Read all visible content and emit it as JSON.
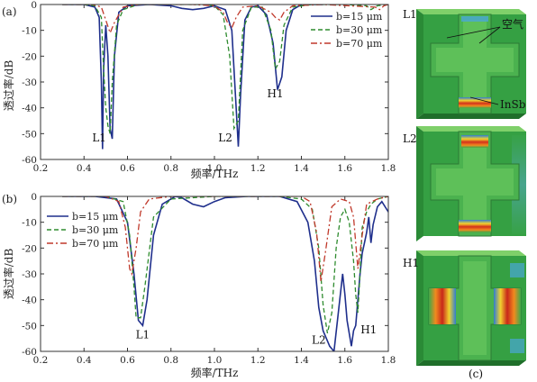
{
  "chart_data": [
    {
      "panel": "(a)",
      "type": "line",
      "xlabel": "频率/THz",
      "ylabel": "透过率/dB",
      "xlim": [
        0.2,
        1.8
      ],
      "ylim": [
        -60,
        0
      ],
      "xticks": [
        "0.2",
        "0.4",
        "0.6",
        "0.8",
        "1.0",
        "1.2",
        "1.4",
        "1.6",
        "1.8"
      ],
      "yticks": [
        "0",
        "-10",
        "-20",
        "-30",
        "-40",
        "-50",
        "-60"
      ],
      "grid": false,
      "legend_position": "top-right",
      "annotations": [
        {
          "text": "L1",
          "x": 0.47,
          "y": -53
        },
        {
          "text": "L2",
          "x": 1.05,
          "y": -53
        },
        {
          "text": "H1",
          "x": 1.28,
          "y": -36
        }
      ],
      "series": [
        {
          "name": "b=15 μm",
          "color": "#1f2f8c",
          "dash": "solid",
          "x": [
            0.3,
            0.4,
            0.45,
            0.47,
            0.48,
            0.485,
            0.49,
            0.5,
            0.51,
            0.52,
            0.53,
            0.54,
            0.56,
            0.6,
            0.7,
            0.8,
            0.85,
            0.9,
            0.95,
            1.0,
            1.05,
            1.08,
            1.1,
            1.11,
            1.12,
            1.14,
            1.17,
            1.2,
            1.24,
            1.27,
            1.29,
            1.31,
            1.33,
            1.36,
            1.4,
            1.5
          ],
          "y": [
            0,
            0,
            -1,
            -5,
            -30,
            -56,
            -25,
            -8,
            -20,
            -48,
            -52,
            -20,
            -3,
            -0.5,
            0,
            -0.5,
            -1.5,
            -2,
            -1.5,
            -0.5,
            -2,
            -10,
            -40,
            -55,
            -35,
            -6,
            -1,
            -0.5,
            -4,
            -15,
            -33,
            -28,
            -10,
            -2,
            0,
            0
          ]
        },
        {
          "name": "b=30 μm",
          "color": "#2e8b2e",
          "dash": "dashed",
          "x": [
            0.3,
            0.4,
            0.45,
            0.48,
            0.49,
            0.5,
            0.51,
            0.52,
            0.53,
            0.55,
            0.58,
            0.65,
            0.8,
            0.95,
            1.0,
            1.04,
            1.07,
            1.09,
            1.11,
            1.13,
            1.17,
            1.22,
            1.26,
            1.28,
            1.3,
            1.32,
            1.36,
            1.45,
            1.6,
            1.7,
            1.72,
            1.75,
            1.8
          ],
          "y": [
            0,
            0,
            -0.5,
            -5,
            -25,
            -40,
            -47,
            -50,
            -30,
            -8,
            -2,
            0,
            0,
            0,
            -0.5,
            -4,
            -20,
            -48,
            -45,
            -10,
            -1,
            -1,
            -10,
            -25,
            -22,
            -8,
            -1,
            0,
            0,
            -0.5,
            -2,
            -0.5,
            0
          ]
        },
        {
          "name": "b=70 μm",
          "color": "#c0392b",
          "dash": "dashdot",
          "x": [
            0.3,
            0.44,
            0.48,
            0.5,
            0.52,
            0.54,
            0.58,
            0.65,
            0.9,
            1.0,
            1.04,
            1.06,
            1.08,
            1.1,
            1.13,
            1.2,
            1.26,
            1.28,
            1.3,
            1.32,
            1.36,
            1.5,
            1.74,
            1.76,
            1.78,
            1.8
          ],
          "y": [
            0,
            0,
            -1,
            -6,
            -11,
            -7,
            -1,
            0,
            0,
            -0.5,
            -3,
            -7,
            -9,
            -5,
            -1,
            -0.5,
            -3,
            -5,
            -6,
            -3,
            -0.5,
            0,
            -1,
            -2,
            -0.5,
            0
          ]
        }
      ]
    },
    {
      "panel": "(b)",
      "type": "line",
      "xlabel": "频率/THz",
      "ylabel": "透过率/dB",
      "xlim": [
        0.2,
        1.8
      ],
      "ylim": [
        -60,
        0
      ],
      "xticks": [
        "0.2",
        "0.4",
        "0.6",
        "0.8",
        "1.0",
        "1.2",
        "1.4",
        "1.6",
        "1.8"
      ],
      "yticks": [
        "0",
        "-10",
        "-20",
        "-30",
        "-40",
        "-50",
        "-60"
      ],
      "grid": false,
      "legend_position": "top-left",
      "annotations": [
        {
          "text": "L1",
          "x": 0.67,
          "y": -55
        },
        {
          "text": "L2",
          "x": 1.48,
          "y": -57
        },
        {
          "text": "H1",
          "x": 1.71,
          "y": -53
        }
      ],
      "series": [
        {
          "name": "b=15 μm",
          "color": "#1f2f8c",
          "dash": "solid",
          "x": [
            0.3,
            0.45,
            0.55,
            0.6,
            0.63,
            0.65,
            0.67,
            0.69,
            0.72,
            0.76,
            0.82,
            0.85,
            0.9,
            0.95,
            1.0,
            1.05,
            1.15,
            1.3,
            1.38,
            1.43,
            1.46,
            1.48,
            1.5,
            1.53,
            1.55,
            1.57,
            1.59,
            1.6,
            1.61,
            1.63,
            1.64,
            1.65,
            1.66,
            1.67,
            1.68,
            1.69,
            1.7,
            1.71,
            1.72,
            1.73,
            1.75,
            1.77,
            1.8
          ],
          "y": [
            0,
            0,
            -1,
            -10,
            -30,
            -48,
            -50,
            -40,
            -15,
            -3,
            0,
            -0.5,
            -3,
            -4,
            -2,
            -0.5,
            0,
            0,
            -2,
            -10,
            -25,
            -43,
            -52,
            -58,
            -60,
            -45,
            -30,
            -38,
            -48,
            -58,
            -52,
            -50,
            -40,
            -30,
            -22,
            -18,
            -14,
            -8,
            -18,
            -11,
            -4,
            -2,
            -6
          ]
        },
        {
          "name": "b=30 μm",
          "color": "#2e8b2e",
          "dash": "dashed",
          "x": [
            0.3,
            0.5,
            0.58,
            0.61,
            0.63,
            0.64,
            0.66,
            0.68,
            0.72,
            0.8,
            1.0,
            1.3,
            1.4,
            1.45,
            1.48,
            1.5,
            1.52,
            1.54,
            1.56,
            1.58,
            1.6,
            1.62,
            1.64,
            1.65,
            1.66,
            1.67,
            1.68,
            1.7,
            1.72,
            1.75,
            1.8
          ],
          "y": [
            0,
            0,
            -2,
            -15,
            -35,
            -47,
            -47,
            -35,
            -8,
            -1,
            0,
            0,
            -1,
            -5,
            -20,
            -42,
            -53,
            -45,
            -20,
            -8,
            -5,
            -10,
            -25,
            -38,
            -45,
            -30,
            -12,
            -6,
            -3,
            -1,
            0
          ]
        },
        {
          "name": "b=70 μm",
          "color": "#c0392b",
          "dash": "dashdot",
          "x": [
            0.3,
            0.5,
            0.56,
            0.59,
            0.61,
            0.62,
            0.64,
            0.66,
            0.7,
            0.8,
            1.4,
            1.44,
            1.47,
            1.49,
            1.51,
            1.54,
            1.58,
            1.62,
            1.64,
            1.66,
            1.68,
            1.7,
            1.75,
            1.8
          ],
          "y": [
            0,
            0,
            -2,
            -12,
            -28,
            -30,
            -20,
            -6,
            -1,
            0,
            0,
            -2,
            -14,
            -33,
            -22,
            -4,
            -1,
            -2,
            -8,
            -28,
            -15,
            -3,
            -1,
            0
          ]
        }
      ]
    }
  ],
  "panel_labels": {
    "a": "(a)",
    "b": "(b)",
    "c": "(c)"
  },
  "field_maps": {
    "labels": [
      "L1",
      "L2",
      "H1"
    ],
    "material_labels": [
      "空气",
      "InSb"
    ]
  }
}
